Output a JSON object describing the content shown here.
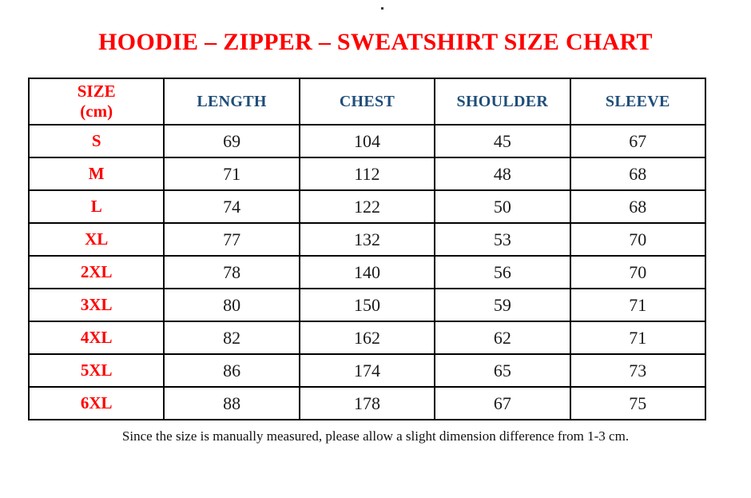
{
  "page": {
    "stray_mark": "."
  },
  "title": "HOODIE – ZIPPER – SWEATSHIRT SIZE CHART",
  "chart_data": {
    "type": "table",
    "title": "HOODIE – ZIPPER – SWEATSHIRT SIZE CHART",
    "units": "cm",
    "columns": [
      "SIZE (cm)",
      "LENGTH",
      "CHEST",
      "SHOULDER",
      "SLEEVE"
    ],
    "rows": [
      [
        "S",
        69,
        104,
        45,
        67
      ],
      [
        "M",
        71,
        112,
        48,
        68
      ],
      [
        "L",
        74,
        122,
        50,
        68
      ],
      [
        "XL",
        77,
        132,
        53,
        70
      ],
      [
        "2XL",
        78,
        140,
        56,
        70
      ],
      [
        "3XL",
        80,
        150,
        59,
        71
      ],
      [
        "4XL",
        82,
        162,
        62,
        71
      ],
      [
        "5XL",
        86,
        174,
        65,
        73
      ],
      [
        "6XL",
        88,
        178,
        67,
        75
      ]
    ]
  },
  "table": {
    "size_header_line1": "SIZE",
    "size_header_line2": "(cm)",
    "headers": [
      "LENGTH",
      "CHEST",
      "SHOULDER",
      "SLEEVE"
    ],
    "rows": [
      {
        "size": "S",
        "length": "69",
        "chest": "104",
        "shoulder": "45",
        "sleeve": "67"
      },
      {
        "size": "M",
        "length": "71",
        "chest": "112",
        "shoulder": "48",
        "sleeve": "68"
      },
      {
        "size": "L",
        "length": "74",
        "chest": "122",
        "shoulder": "50",
        "sleeve": "68"
      },
      {
        "size": "XL",
        "length": "77",
        "chest": "132",
        "shoulder": "53",
        "sleeve": "70"
      },
      {
        "size": "2XL",
        "length": "78",
        "chest": "140",
        "shoulder": "56",
        "sleeve": "70"
      },
      {
        "size": "3XL",
        "length": "80",
        "chest": "150",
        "shoulder": "59",
        "sleeve": "71"
      },
      {
        "size": "4XL",
        "length": "82",
        "chest": "162",
        "shoulder": "62",
        "sleeve": "71"
      },
      {
        "size": "5XL",
        "length": "86",
        "chest": "174",
        "shoulder": "65",
        "sleeve": "73"
      },
      {
        "size": "6XL",
        "length": "88",
        "chest": "178",
        "shoulder": "67",
        "sleeve": "75"
      }
    ]
  },
  "footer": {
    "note": "Since the size is manually measured, please allow a slight dimension difference from 1-3 cm."
  },
  "colors": {
    "title_red": "#FF0000",
    "size_label_red": "#FF0000",
    "header_blue": "#1F4E79",
    "body_text": "#1A1A1A",
    "border": "#000000",
    "background": "#FFFFFF"
  }
}
